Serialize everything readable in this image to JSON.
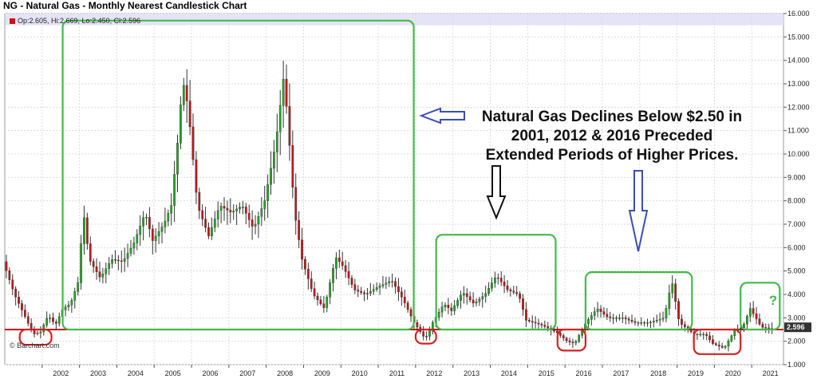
{
  "header": {
    "title": "NG - Natural Gas - Monthly Nearest Candlestick Chart",
    "ohlc_text": "Op:2.605, Hi:2.669, Lo:2.450, Cl:2.596"
  },
  "watermark": "© Barchart.com",
  "colors": {
    "up": "#22a822",
    "down": "#c81414",
    "box_green": "#44b848",
    "box_red": "#d42020",
    "support_line": "#cc1010",
    "arrow_blue": "#3a4db8",
    "highlight_band": "#e4e4f6",
    "price_tag_bg": "#333333"
  },
  "annotation": {
    "lines": [
      "Natural Gas Declines Below $2.50 in",
      "2001, 2012 & 2016 Preceded",
      "Extended Periods of Higher Prices."
    ],
    "question_mark": "?"
  },
  "chart_data": {
    "type": "candlestick",
    "title": "NG - Natural Gas - Monthly Nearest Candlestick Chart",
    "x_range": [
      2001.0,
      2021.85
    ],
    "ylim": [
      1.0,
      16.0
    ],
    "x_ticks": [
      "2002",
      "2003",
      "2004",
      "2005",
      "2006",
      "2007",
      "2008",
      "2009",
      "2010",
      "2011",
      "2012",
      "2013",
      "2014",
      "2015",
      "2016",
      "2017",
      "2018",
      "2019",
      "2020",
      "2021"
    ],
    "y_ticks": [
      "1.000",
      "2.000",
      "3.000",
      "4.000",
      "5.000",
      "6.000",
      "7.000",
      "8.000",
      "9.000",
      "10.000",
      "11.000",
      "12.000",
      "13.000",
      "14.000",
      "15.000",
      "16.000"
    ],
    "last_price": "2.596",
    "support_level": 2.5,
    "anchors": [
      [
        2001.0,
        5.4
      ],
      [
        2001.3,
        4.0
      ],
      [
        2001.6,
        3.0
      ],
      [
        2001.8,
        2.3
      ],
      [
        2002.0,
        2.4
      ],
      [
        2002.2,
        3.1
      ],
      [
        2002.4,
        2.7
      ],
      [
        2002.6,
        3.4
      ],
      [
        2002.8,
        3.6
      ],
      [
        2003.0,
        4.5
      ],
      [
        2003.15,
        7.5
      ],
      [
        2003.3,
        5.5
      ],
      [
        2003.6,
        4.7
      ],
      [
        2003.9,
        5.5
      ],
      [
        2004.2,
        5.4
      ],
      [
        2004.5,
        6.2
      ],
      [
        2004.8,
        7.5
      ],
      [
        2005.0,
        6.3
      ],
      [
        2005.3,
        7.0
      ],
      [
        2005.5,
        7.8
      ],
      [
        2005.7,
        11.0
      ],
      [
        2005.8,
        13.2
      ],
      [
        2005.95,
        12.0
      ],
      [
        2006.2,
        7.8
      ],
      [
        2006.5,
        6.5
      ],
      [
        2006.8,
        7.8
      ],
      [
        2007.1,
        7.5
      ],
      [
        2007.4,
        7.8
      ],
      [
        2007.7,
        6.8
      ],
      [
        2008.0,
        8.0
      ],
      [
        2008.3,
        10.5
      ],
      [
        2008.5,
        13.2
      ],
      [
        2008.6,
        11.8
      ],
      [
        2008.8,
        7.5
      ],
      [
        2009.0,
        5.5
      ],
      [
        2009.3,
        4.0
      ],
      [
        2009.6,
        3.4
      ],
      [
        2009.9,
        5.6
      ],
      [
        2010.1,
        5.2
      ],
      [
        2010.4,
        4.2
      ],
      [
        2010.7,
        4.0
      ],
      [
        2011.0,
        4.3
      ],
      [
        2011.4,
        4.6
      ],
      [
        2011.7,
        3.8
      ],
      [
        2012.0,
        2.8
      ],
      [
        2012.3,
        2.1
      ],
      [
        2012.5,
        2.8
      ],
      [
        2012.8,
        3.6
      ],
      [
        2013.0,
        3.3
      ],
      [
        2013.3,
        4.1
      ],
      [
        2013.6,
        3.6
      ],
      [
        2013.9,
        4.0
      ],
      [
        2014.2,
        4.8
      ],
      [
        2014.5,
        4.2
      ],
      [
        2014.8,
        4.0
      ],
      [
        2015.0,
        2.9
      ],
      [
        2015.4,
        2.7
      ],
      [
        2015.8,
        2.4
      ],
      [
        2016.1,
        2.0
      ],
      [
        2016.3,
        1.9
      ],
      [
        2016.6,
        2.8
      ],
      [
        2016.9,
        3.4
      ],
      [
        2017.2,
        3.0
      ],
      [
        2017.6,
        3.0
      ],
      [
        2017.9,
        2.8
      ],
      [
        2018.3,
        2.8
      ],
      [
        2018.7,
        3.0
      ],
      [
        2018.9,
        4.6
      ],
      [
        2019.1,
        2.8
      ],
      [
        2019.5,
        2.3
      ],
      [
        2019.8,
        2.3
      ],
      [
        2020.0,
        1.9
      ],
      [
        2020.3,
        1.7
      ],
      [
        2020.6,
        2.5
      ],
      [
        2020.8,
        2.6
      ],
      [
        2021.0,
        3.4
      ],
      [
        2021.3,
        2.6
      ],
      [
        2021.5,
        2.55
      ]
    ],
    "annotation_boxes": [
      {
        "color": "green",
        "x0": 2002.55,
        "x1": 2011.95,
        "y0": 2.5,
        "y1": 15.7
      },
      {
        "color": "green",
        "x0": 2012.55,
        "x1": 2015.75,
        "y0": 2.5,
        "y1": 6.55
      },
      {
        "color": "green",
        "x0": 2016.55,
        "x1": 2019.4,
        "y0": 2.5,
        "y1": 4.95
      },
      {
        "color": "green",
        "x0": 2020.7,
        "x1": 2021.75,
        "y0": 2.5,
        "y1": 4.5
      },
      {
        "color": "red",
        "x0": 2001.4,
        "x1": 2002.25,
        "y0": 1.85,
        "y1": 2.5
      },
      {
        "color": "red",
        "x0": 2012.0,
        "x1": 2012.55,
        "y0": 1.9,
        "y1": 2.5
      },
      {
        "color": "red",
        "x0": 2015.8,
        "x1": 2016.55,
        "y0": 1.6,
        "y1": 2.5
      },
      {
        "color": "red",
        "x0": 2019.45,
        "x1": 2020.7,
        "y0": 1.45,
        "y1": 2.5
      }
    ]
  }
}
